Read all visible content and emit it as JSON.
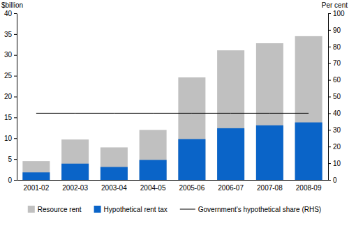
{
  "chart_data": {
    "type": "bar",
    "categories": [
      "2001-02",
      "2002-03",
      "2003-04",
      "2004-05",
      "2005-06",
      "2006-07",
      "2007-08",
      "2008-09"
    ],
    "series": [
      {
        "name": "Resource rent",
        "color": "#c0c0c0",
        "type": "bar",
        "values": [
          4.5,
          9.7,
          7.8,
          12.0,
          24.6,
          31.1,
          32.8,
          34.5
        ]
      },
      {
        "name": "Hypothetical rent tax",
        "color": "#0a64c8",
        "type": "bar",
        "values": [
          1.8,
          3.9,
          3.1,
          4.8,
          9.8,
          12.4,
          13.1,
          13.8
        ]
      },
      {
        "name": "Government's hypothetical share (RHS)",
        "color": "#000000",
        "type": "line",
        "axis": "y2",
        "values": [
          40,
          40,
          40,
          40,
          40,
          40,
          40,
          40
        ]
      }
    ],
    "y_label": "$billion",
    "y2_label": "Per cent",
    "ylim": [
      0,
      40
    ],
    "yticks": [
      0,
      5,
      10,
      15,
      20,
      25,
      30,
      35,
      40
    ],
    "y2lim": [
      0,
      100
    ],
    "y2ticks": [
      0,
      10,
      20,
      30,
      40,
      50,
      60,
      70,
      80,
      90,
      100
    ],
    "stacked": false,
    "grid": false,
    "legend": "bottom"
  }
}
